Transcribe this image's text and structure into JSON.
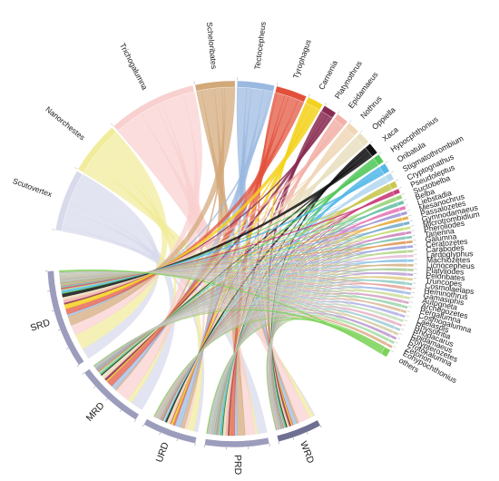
{
  "chart_data": {
    "type": "chord",
    "genera": [
      {
        "label": "Scutovertex",
        "color": "#d8daec",
        "weight": 7.0
      },
      {
        "label": "Nanorchestes",
        "color": "#f1ec9a",
        "weight": 6.0
      },
      {
        "label": "Trichogalumna",
        "color": "#f8d0cf",
        "weight": 10.0
      },
      {
        "label": "Scheloribates",
        "color": "#d2a878",
        "weight": 4.5
      },
      {
        "label": "Tectocepheus",
        "color": "#9ab8e0",
        "weight": 4.2
      },
      {
        "label": "Tyrophagus",
        "color": "#e2503a",
        "weight": 3.5
      },
      {
        "label": "Carnenia",
        "color": "#f3d21c",
        "weight": 1.8
      },
      {
        "label": "Platynothrus",
        "color": "#8a2c52",
        "weight": 1.5
      },
      {
        "label": "Epidamaeus",
        "color": "#f2b1a8",
        "weight": 1.4
      },
      {
        "label": "Nothrus",
        "color": "#f0d8b8",
        "weight": 1.4
      },
      {
        "label": "Oppiella",
        "color": "#e9e0c2",
        "weight": 1.4
      },
      {
        "label": "Xaca",
        "color": "#111111",
        "weight": 1.3
      },
      {
        "label": "Hypocphthonius",
        "color": "#52c85a",
        "weight": 1.0
      },
      {
        "label": "Oribatula",
        "color": "#55b8e8",
        "weight": 1.0
      },
      {
        "label": "Stigmatothrombium",
        "color": "#b6d8ee",
        "weight": 0.8
      },
      {
        "label": "Cryptognathus",
        "color": "#c8c850",
        "weight": 0.7
      },
      {
        "label": "Pseudoleptus",
        "color": "#c93d7a",
        "weight": 0.5
      },
      {
        "label": "Suctobelba",
        "color": "#9ad47a",
        "weight": 0.45
      },
      {
        "label": "Belba",
        "color": "#6bc2a8",
        "weight": 0.4
      },
      {
        "label": "Liebstadia",
        "color": "#e87ab8",
        "weight": 0.4
      },
      {
        "label": "Mesanochrus",
        "color": "#a49ad8",
        "weight": 0.35
      },
      {
        "label": "Passalozetes",
        "color": "#e8b04a",
        "weight": 0.35
      },
      {
        "label": "Gymnodamaeus",
        "color": "#7ab0d0",
        "weight": 0.35
      },
      {
        "label": "Microtrombidium",
        "color": "#c8e07a",
        "weight": 0.3
      },
      {
        "label": "Pheroliodes",
        "color": "#d08ac0",
        "weight": 0.3
      },
      {
        "label": "Tanenna",
        "color": "#88c8b8",
        "weight": 0.3
      },
      {
        "label": "Galumna",
        "color": "#e0a060",
        "weight": 0.3
      },
      {
        "label": "Ceratozetes",
        "color": "#a0a8e0",
        "weight": 0.3
      },
      {
        "label": "Carabodes",
        "color": "#b8d890",
        "weight": 0.3
      },
      {
        "label": "Lardoglyphus",
        "color": "#e8c0d8",
        "weight": 0.3
      },
      {
        "label": "Machiozetes",
        "color": "#90c8e8",
        "weight": 0.3
      },
      {
        "label": "Licnocepheus",
        "color": "#d8b890",
        "weight": 0.3
      },
      {
        "label": "Platyliodes",
        "color": "#b0d0a0",
        "weight": 0.3
      },
      {
        "label": "Peloribates",
        "color": "#c0a8d8",
        "weight": 0.3
      },
      {
        "label": "Truncopes",
        "color": "#e0d090",
        "weight": 0.3
      },
      {
        "label": "Cosmolaelaps",
        "color": "#98d0c8",
        "weight": 0.3
      },
      {
        "label": "Heminothrus",
        "color": "#e8a8a0",
        "weight": 0.3
      },
      {
        "label": "Gamasiphis",
        "color": "#a8c0e8",
        "weight": 0.3
      },
      {
        "label": "Autogneta",
        "color": "#d0e0a0",
        "weight": 0.3
      },
      {
        "label": "Archegozetes",
        "color": "#d8a8c8",
        "weight": 0.3
      },
      {
        "label": "Pergalumna",
        "color": "#a0d8b0",
        "weight": 0.3
      },
      {
        "label": "Cosmogalumna",
        "color": "#e0c0a0",
        "weight": 0.3
      },
      {
        "label": "Laelaspis",
        "color": "#b8b8e8",
        "weight": 0.3
      },
      {
        "label": "Rhysotritia",
        "color": "#c8e0c0",
        "weight": 0.3
      },
      {
        "label": "Rhodacarus",
        "color": "#e8b8c8",
        "weight": 0.3
      },
      {
        "label": "Epidamaeus",
        "color": "#a8d0d8",
        "weight": 0.3
      },
      {
        "label": "Polypterozetes",
        "color": "#d8d0a8",
        "weight": 0.3
      },
      {
        "label": "Protokalumna",
        "color": "#c0a0d0",
        "weight": 0.3
      },
      {
        "label": "Zetorion",
        "color": "#a8e0a8",
        "weight": 0.3
      },
      {
        "label": "Eohypochthonius",
        "color": "#e0b090",
        "weight": 0.3
      },
      {
        "label": "others",
        "color": "#7dd35a",
        "weight": 0.9
      }
    ],
    "groups": [
      {
        "label": "WRD",
        "color": "#6f6f92",
        "weight": 4.5
      },
      {
        "label": "PRD",
        "color": "#9c9cbc",
        "weight": 6.5
      },
      {
        "label": "URD",
        "color": "#9c9cbc",
        "weight": 5.5
      },
      {
        "label": "MRD",
        "color": "#9c9cbc",
        "weight": 7.0
      },
      {
        "label": "SRD",
        "color": "#9c9cbc",
        "weight": 10.0
      }
    ]
  }
}
